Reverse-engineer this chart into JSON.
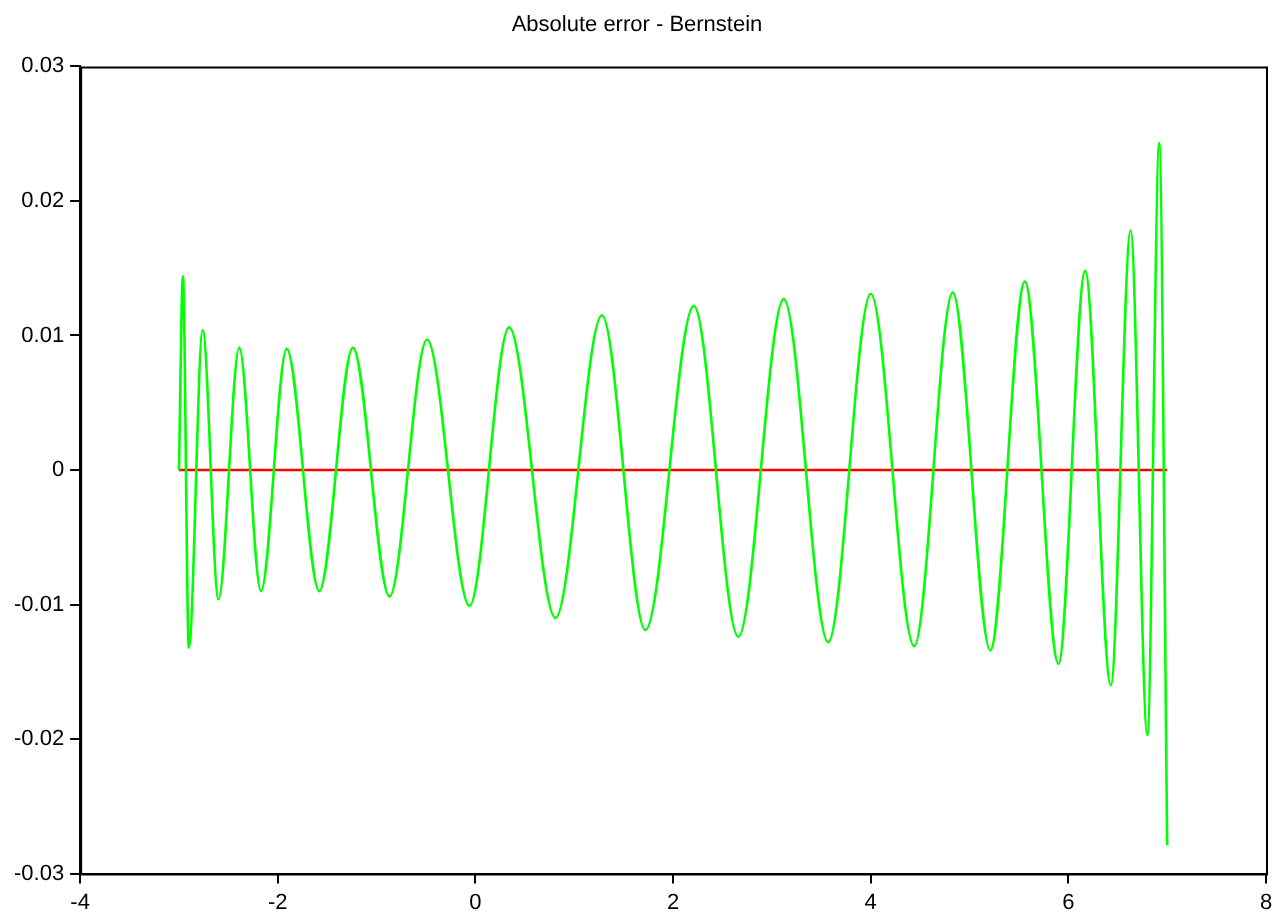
{
  "chart_data": {
    "type": "line",
    "title": "Absolute error - Bernstein",
    "series": [
      {
        "color": "#00ff00",
        "x": [
          -3,
          -2.96,
          -2.9,
          -2.76,
          -2.6,
          -2.39,
          -2.17,
          -1.91,
          -1.58,
          -1.24,
          -0.87,
          -0.49,
          -0.06,
          0.34,
          0.81,
          1.28,
          1.72,
          2.21,
          2.66,
          3.12,
          3.57,
          4.0,
          4.44,
          4.83,
          5.21,
          5.56,
          5.9,
          6.17,
          6.43,
          6.63,
          6.8,
          6.92,
          7.0
        ],
        "values": [
          0,
          0.0144,
          -0.0132,
          0.0104,
          -0.0096,
          0.0091,
          -0.009,
          0.009,
          -0.009,
          0.0091,
          -0.0094,
          0.0097,
          -0.0101,
          0.0106,
          -0.011,
          0.0115,
          -0.0119,
          0.0122,
          -0.0124,
          0.0127,
          -0.0128,
          0.0131,
          -0.0131,
          0.0132,
          -0.0134,
          0.014,
          -0.0144,
          0.0148,
          -0.016,
          0.0178,
          -0.0197,
          0.0243,
          -0.0279
        ]
      },
      {
        "color": "#ff0000",
        "x": [
          -3,
          7
        ],
        "values": [
          0,
          0
        ]
      }
    ],
    "xlim": [
      -4,
      8
    ],
    "xticks": [
      -4,
      -2,
      0,
      2,
      4,
      6,
      8
    ],
    "ylim": [
      -0.03,
      0.03
    ],
    "yticks": [
      -0.03,
      -0.02,
      -0.01,
      0,
      0.01,
      0.02,
      0.03
    ],
    "grid": false,
    "legend": false,
    "marker": "none",
    "line_style": "solid"
  }
}
